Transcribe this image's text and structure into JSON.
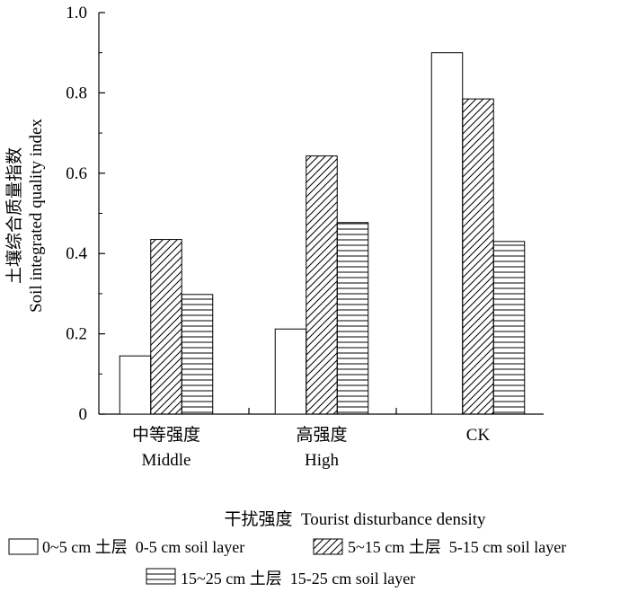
{
  "chart_data": {
    "type": "bar",
    "ylabel_cn": "土壤综合质量指数",
    "ylabel_en": "Soil integrated quality index",
    "xlabel": "干扰强度  Tourist disturbance density",
    "categories": [
      {
        "cn": "中等强度",
        "en": "Middle"
      },
      {
        "cn": "高强度",
        "en": "High"
      },
      {
        "cn": "CK",
        "en": ""
      }
    ],
    "series": [
      {
        "name": "0~5 cm 土层  0-5 cm soil layer",
        "pattern": "open",
        "values": [
          0.145,
          0.212,
          0.9
        ]
      },
      {
        "name": "5~15 cm 土层  5-15 cm soil layer",
        "pattern": "diagonal-hatch",
        "values": [
          0.435,
          0.643,
          0.785
        ]
      },
      {
        "name": "15~25 cm 土层  15-25 cm soil layer",
        "pattern": "horizontal-hatch",
        "values": [
          0.298,
          0.477,
          0.43
        ]
      }
    ],
    "ylim": [
      0,
      1.0
    ],
    "yticks": [
      "0",
      "0.2",
      "0.4",
      "0.6",
      "0.8",
      "1.0"
    ],
    "grid": false,
    "legend_placement": "bottom"
  }
}
